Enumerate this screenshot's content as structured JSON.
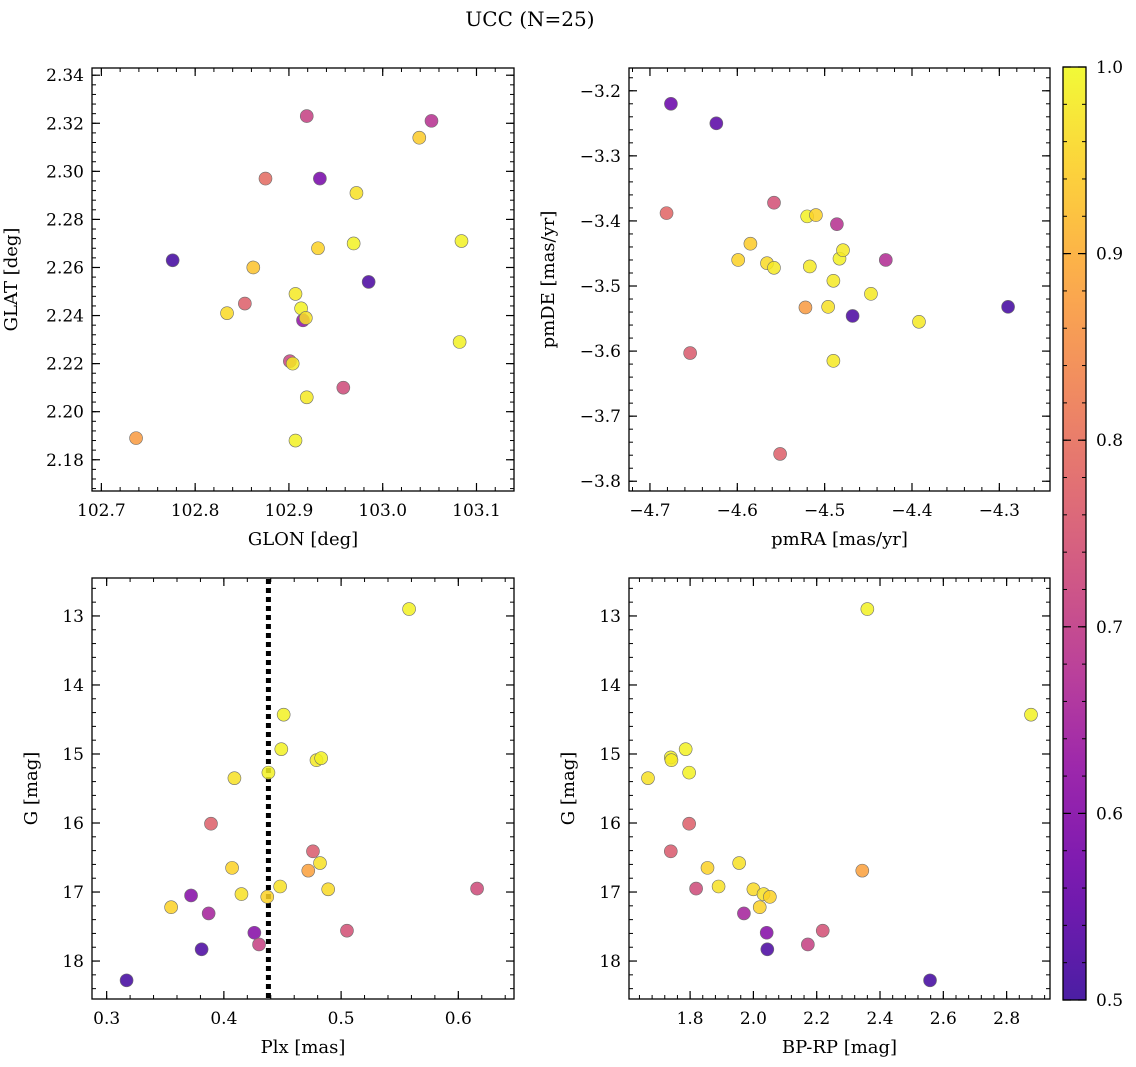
{
  "figure": {
    "title": "UCC (N=25)"
  },
  "colorbar": {
    "min": 0.5,
    "max": 1.0,
    "ticks": [
      0.5,
      0.6,
      0.7,
      0.8,
      0.9,
      1.0
    ],
    "tick_labels": [
      "0.5",
      "0.6",
      "0.7",
      "0.8",
      "0.9",
      "1.0"
    ],
    "colormap": "plasma"
  },
  "chart_data": [
    {
      "type": "scatter",
      "id": "sky",
      "xlabel": "GLON [deg]",
      "ylabel": "GLAT [deg]",
      "xlim": [
        102.69,
        103.14
      ],
      "ylim": [
        2.167,
        2.343
      ],
      "xticks": [
        102.7,
        102.8,
        102.9,
        103.0,
        103.1
      ],
      "xtick_labels": [
        "102.7",
        "102.8",
        "102.9",
        "103.0",
        "103.1"
      ],
      "yticks": [
        2.18,
        2.2,
        2.22,
        2.24,
        2.26,
        2.28,
        2.3,
        2.32,
        2.34
      ],
      "ytick_labels": [
        "2.18",
        "2.20",
        "2.22",
        "2.24",
        "2.26",
        "2.28",
        "2.30",
        "2.32",
        "2.34"
      ],
      "points": [
        {
          "x": 102.737,
          "y": 2.189,
          "c": 0.87
        },
        {
          "x": 102.776,
          "y": 2.263,
          "c": 0.51
        },
        {
          "x": 102.834,
          "y": 2.241,
          "c": 0.96
        },
        {
          "x": 102.853,
          "y": 2.245,
          "c": 0.77
        },
        {
          "x": 102.862,
          "y": 2.26,
          "c": 0.93
        },
        {
          "x": 102.875,
          "y": 2.297,
          "c": 0.79
        },
        {
          "x": 102.901,
          "y": 2.221,
          "c": 0.72
        },
        {
          "x": 102.904,
          "y": 2.22,
          "c": 0.98
        },
        {
          "x": 102.907,
          "y": 2.249,
          "c": 0.98
        },
        {
          "x": 102.907,
          "y": 2.188,
          "c": 0.99
        },
        {
          "x": 102.913,
          "y": 2.243,
          "c": 0.99
        },
        {
          "x": 102.915,
          "y": 2.238,
          "c": 0.62
        },
        {
          "x": 102.918,
          "y": 2.239,
          "c": 0.97
        },
        {
          "x": 102.919,
          "y": 2.206,
          "c": 0.98
        },
        {
          "x": 102.919,
          "y": 2.323,
          "c": 0.71
        },
        {
          "x": 102.931,
          "y": 2.268,
          "c": 0.95
        },
        {
          "x": 102.933,
          "y": 2.297,
          "c": 0.58
        },
        {
          "x": 102.958,
          "y": 2.21,
          "c": 0.73
        },
        {
          "x": 102.969,
          "y": 2.27,
          "c": 0.99
        },
        {
          "x": 102.972,
          "y": 2.291,
          "c": 0.97
        },
        {
          "x": 102.985,
          "y": 2.254,
          "c": 0.52
        },
        {
          "x": 103.039,
          "y": 2.314,
          "c": 0.94
        },
        {
          "x": 103.052,
          "y": 2.321,
          "c": 0.68
        },
        {
          "x": 103.082,
          "y": 2.229,
          "c": 0.99
        },
        {
          "x": 103.084,
          "y": 2.271,
          "c": 0.99
        }
      ]
    },
    {
      "type": "scatter",
      "id": "pm",
      "xlabel": "pmRA [mas/yr]",
      "ylabel": "pmDE [mas/yr]",
      "xlim": [
        -4.724,
        -4.242
      ],
      "ylim": [
        -3.815,
        -3.165
      ],
      "xticks": [
        -4.7,
        -4.6,
        -4.5,
        -4.4,
        -4.3
      ],
      "xtick_labels": [
        "−4.7",
        "−4.6",
        "−4.5",
        "−4.4",
        "−4.3"
      ],
      "yticks": [
        -3.8,
        -3.7,
        -3.6,
        -3.5,
        -3.4,
        -3.3,
        -3.2
      ],
      "ytick_labels": [
        "−3.8",
        "−3.7",
        "−3.6",
        "−3.5",
        "−3.4",
        "−3.3",
        "−3.2"
      ],
      "points": [
        {
          "x": -4.676,
          "y": -3.22,
          "c": 0.56
        },
        {
          "x": -4.624,
          "y": -3.25,
          "c": 0.54
        },
        {
          "x": -4.681,
          "y": -3.388,
          "c": 0.78
        },
        {
          "x": -4.654,
          "y": -3.603,
          "c": 0.76
        },
        {
          "x": -4.599,
          "y": -3.46,
          "c": 0.95
        },
        {
          "x": -4.585,
          "y": -3.435,
          "c": 0.94
        },
        {
          "x": -4.566,
          "y": -3.465,
          "c": 0.96
        },
        {
          "x": -4.558,
          "y": -3.472,
          "c": 0.98
        },
        {
          "x": -4.558,
          "y": -3.372,
          "c": 0.74
        },
        {
          "x": -4.551,
          "y": -3.758,
          "c": 0.77
        },
        {
          "x": -4.522,
          "y": -3.533,
          "c": 0.87
        },
        {
          "x": -4.52,
          "y": -3.393,
          "c": 0.99
        },
        {
          "x": -4.517,
          "y": -3.47,
          "c": 0.98
        },
        {
          "x": -4.51,
          "y": -3.391,
          "c": 0.95
        },
        {
          "x": -4.496,
          "y": -3.532,
          "c": 0.97
        },
        {
          "x": -4.49,
          "y": -3.492,
          "c": 0.98
        },
        {
          "x": -4.49,
          "y": -3.615,
          "c": 0.98
        },
        {
          "x": -4.486,
          "y": -3.405,
          "c": 0.68
        },
        {
          "x": -4.483,
          "y": -3.458,
          "c": 0.99
        },
        {
          "x": -4.479,
          "y": -3.445,
          "c": 0.98
        },
        {
          "x": -4.468,
          "y": -3.546,
          "c": 0.52
        },
        {
          "x": -4.447,
          "y": -3.512,
          "c": 0.98
        },
        {
          "x": -4.43,
          "y": -3.46,
          "c": 0.67
        },
        {
          "x": -4.392,
          "y": -3.555,
          "c": 0.98
        },
        {
          "x": -4.29,
          "y": -3.532,
          "c": 0.51
        }
      ]
    },
    {
      "type": "scatter",
      "id": "plx",
      "xlabel": "Plx [mas]",
      "ylabel": "G [mag]",
      "xlim": [
        0.2875,
        0.6475
      ],
      "ylim": [
        18.55,
        12.45
      ],
      "y_inverted": true,
      "xticks": [
        0.3,
        0.4,
        0.5,
        0.6
      ],
      "xtick_labels": [
        "0.3",
        "0.4",
        "0.5",
        "0.6"
      ],
      "yticks": [
        13,
        14,
        15,
        16,
        17,
        18
      ],
      "ytick_labels": [
        "13",
        "14",
        "15",
        "16",
        "17",
        "18"
      ],
      "vline": {
        "x": 0.438,
        "style": "dotted",
        "color": "#000000"
      },
      "points": [
        {
          "x": 0.317,
          "y": 18.28,
          "c": 0.51
        },
        {
          "x": 0.355,
          "y": 17.22,
          "c": 0.95
        },
        {
          "x": 0.372,
          "y": 17.05,
          "c": 0.6
        },
        {
          "x": 0.381,
          "y": 17.83,
          "c": 0.52
        },
        {
          "x": 0.387,
          "y": 17.31,
          "c": 0.65
        },
        {
          "x": 0.389,
          "y": 16.01,
          "c": 0.77
        },
        {
          "x": 0.407,
          "y": 16.65,
          "c": 0.95
        },
        {
          "x": 0.409,
          "y": 15.35,
          "c": 0.97
        },
        {
          "x": 0.415,
          "y": 17.03,
          "c": 0.97
        },
        {
          "x": 0.426,
          "y": 17.59,
          "c": 0.6
        },
        {
          "x": 0.43,
          "y": 17.76,
          "c": 0.71
        },
        {
          "x": 0.437,
          "y": 17.07,
          "c": 0.95
        },
        {
          "x": 0.438,
          "y": 15.27,
          "c": 0.99
        },
        {
          "x": 0.448,
          "y": 16.92,
          "c": 0.97
        },
        {
          "x": 0.449,
          "y": 14.93,
          "c": 0.99
        },
        {
          "x": 0.451,
          "y": 14.43,
          "c": 0.99
        },
        {
          "x": 0.472,
          "y": 16.69,
          "c": 0.88
        },
        {
          "x": 0.476,
          "y": 16.41,
          "c": 0.76
        },
        {
          "x": 0.479,
          "y": 15.09,
          "c": 0.98
        },
        {
          "x": 0.482,
          "y": 16.58,
          "c": 0.97
        },
        {
          "x": 0.483,
          "y": 15.06,
          "c": 0.99
        },
        {
          "x": 0.489,
          "y": 16.96,
          "c": 0.96
        },
        {
          "x": 0.505,
          "y": 17.56,
          "c": 0.74
        },
        {
          "x": 0.558,
          "y": 12.9,
          "c": 0.99
        },
        {
          "x": 0.616,
          "y": 16.95,
          "c": 0.73
        }
      ]
    },
    {
      "type": "scatter",
      "id": "cmd",
      "xlabel": "BP-RP [mag]",
      "ylabel": "G [mag]",
      "xlim": [
        1.607,
        2.937
      ],
      "ylim": [
        18.55,
        12.45
      ],
      "y_inverted": true,
      "xticks": [
        1.8,
        2.0,
        2.2,
        2.4,
        2.6,
        2.8
      ],
      "xtick_labels": [
        "1.8",
        "2.0",
        "2.2",
        "2.4",
        "2.6",
        "2.8"
      ],
      "yticks": [
        13,
        14,
        15,
        16,
        17,
        18
      ],
      "ytick_labels": [
        "13",
        "14",
        "15",
        "16",
        "17",
        "18"
      ],
      "points": [
        {
          "x": 1.667,
          "y": 15.35,
          "c": 0.97
        },
        {
          "x": 1.739,
          "y": 15.05,
          "c": 0.99
        },
        {
          "x": 1.741,
          "y": 15.09,
          "c": 0.98
        },
        {
          "x": 1.739,
          "y": 16.41,
          "c": 0.76
        },
        {
          "x": 1.786,
          "y": 14.93,
          "c": 0.99
        },
        {
          "x": 1.797,
          "y": 15.27,
          "c": 0.99
        },
        {
          "x": 1.797,
          "y": 16.01,
          "c": 0.77
        },
        {
          "x": 1.819,
          "y": 16.95,
          "c": 0.73
        },
        {
          "x": 1.855,
          "y": 16.65,
          "c": 0.95
        },
        {
          "x": 1.89,
          "y": 16.92,
          "c": 0.97
        },
        {
          "x": 1.955,
          "y": 16.58,
          "c": 0.97
        },
        {
          "x": 1.97,
          "y": 17.31,
          "c": 0.65
        },
        {
          "x": 2.0,
          "y": 16.96,
          "c": 0.96
        },
        {
          "x": 2.02,
          "y": 17.22,
          "c": 0.95
        },
        {
          "x": 2.032,
          "y": 17.03,
          "c": 0.97
        },
        {
          "x": 2.042,
          "y": 17.59,
          "c": 0.6
        },
        {
          "x": 2.044,
          "y": 17.83,
          "c": 0.52
        },
        {
          "x": 2.052,
          "y": 17.07,
          "c": 0.95
        },
        {
          "x": 2.172,
          "y": 17.76,
          "c": 0.71
        },
        {
          "x": 2.219,
          "y": 17.56,
          "c": 0.74
        },
        {
          "x": 2.344,
          "y": 16.69,
          "c": 0.88
        },
        {
          "x": 2.36,
          "y": 12.9,
          "c": 0.99
        },
        {
          "x": 2.558,
          "y": 18.28,
          "c": 0.51
        },
        {
          "x": 2.877,
          "y": 14.43,
          "c": 0.99
        }
      ]
    }
  ]
}
